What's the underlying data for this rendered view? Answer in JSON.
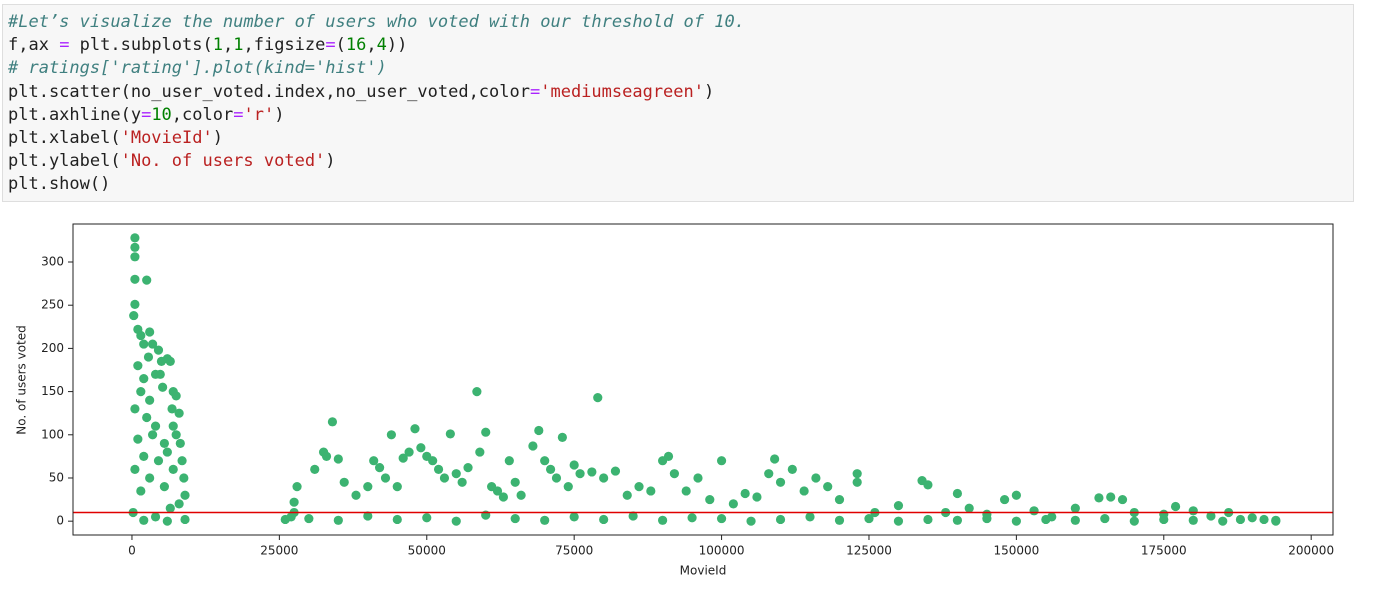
{
  "code": {
    "lines": [
      [
        {
          "text": "#Let’s visualize the number of users who voted with our threshold of 10.",
          "color": "#408080",
          "italic": true
        }
      ],
      [
        {
          "text": "f,ax ",
          "color": "#212121"
        },
        {
          "text": "=",
          "color": "#aa22ff"
        },
        {
          "text": " plt.subplots(",
          "color": "#212121"
        },
        {
          "text": "1",
          "color": "#008000"
        },
        {
          "text": ",",
          "color": "#212121"
        },
        {
          "text": "1",
          "color": "#008000"
        },
        {
          "text": ",figsize",
          "color": "#212121"
        },
        {
          "text": "=",
          "color": "#aa22ff"
        },
        {
          "text": "(",
          "color": "#212121"
        },
        {
          "text": "16",
          "color": "#008000"
        },
        {
          "text": ",",
          "color": "#212121"
        },
        {
          "text": "4",
          "color": "#008000"
        },
        {
          "text": "))",
          "color": "#212121"
        }
      ],
      [
        {
          "text": "# ratings['rating'].plot(kind='hist')",
          "color": "#408080",
          "italic": true
        }
      ],
      [
        {
          "text": "plt.scatter(no_user_voted.index,no_user_voted,color",
          "color": "#212121"
        },
        {
          "text": "=",
          "color": "#aa22ff"
        },
        {
          "text": "'mediumseagreen'",
          "color": "#ba2121"
        },
        {
          "text": ")",
          "color": "#212121"
        }
      ],
      [
        {
          "text": "plt.axhline(y",
          "color": "#212121"
        },
        {
          "text": "=",
          "color": "#aa22ff"
        },
        {
          "text": "10",
          "color": "#008000"
        },
        {
          "text": ",color",
          "color": "#212121"
        },
        {
          "text": "=",
          "color": "#aa22ff"
        },
        {
          "text": "'r'",
          "color": "#ba2121"
        },
        {
          "text": ")",
          "color": "#212121"
        }
      ],
      [
        {
          "text": "plt.xlabel(",
          "color": "#212121"
        },
        {
          "text": "'MovieId'",
          "color": "#ba2121"
        },
        {
          "text": ")",
          "color": "#212121"
        }
      ],
      [
        {
          "text": "plt.ylabel(",
          "color": "#212121"
        },
        {
          "text": "'No. of users voted'",
          "color": "#ba2121"
        },
        {
          "text": ")",
          "color": "#212121"
        }
      ],
      [
        {
          "text": "plt.show()",
          "color": "#212121"
        }
      ]
    ]
  },
  "chart_data": {
    "type": "scatter",
    "xlabel": "MovieId",
    "ylabel": "No. of users voted",
    "color": "#3cb371",
    "xlim": [
      -10000,
      203700
    ],
    "ylim": [
      -16,
      344
    ],
    "xticks": [
      0,
      25000,
      50000,
      75000,
      100000,
      125000,
      150000,
      175000,
      200000
    ],
    "yticks": [
      0,
      50,
      100,
      150,
      200,
      250,
      300
    ],
    "hline": {
      "y": 10,
      "color": "#e00000"
    },
    "x": [
      500,
      500,
      500,
      500,
      2500,
      500,
      300,
      1000,
      1500,
      2000,
      3000,
      3500,
      2800,
      4500,
      5000,
      6000,
      6500,
      4000,
      4800,
      5200,
      7000,
      7500,
      6800,
      8000,
      7000,
      7500,
      8200,
      8500,
      8800,
      9000,
      1000,
      2000,
      1500,
      3000,
      500,
      2500,
      4000,
      3500,
      1000,
      5500,
      6000,
      2000,
      4500,
      7000,
      500,
      3000,
      5500,
      1500,
      8000,
      6500,
      200,
      4000,
      9000,
      2000,
      6000,
      26000,
      27000,
      27500,
      28000,
      27500,
      31000,
      32500,
      33000,
      34000,
      35000,
      36000,
      38000,
      40000,
      41000,
      42000,
      43000,
      44000,
      45000,
      46000,
      47000,
      48000,
      49000,
      50000,
      51000,
      52000,
      53000,
      54000,
      55000,
      56000,
      57000,
      58500,
      59000,
      60000,
      61000,
      62000,
      63000,
      64000,
      65000,
      66000,
      68000,
      69000,
      70000,
      71000,
      72000,
      73000,
      74000,
      75000,
      76000,
      78000,
      79000,
      80000,
      82000,
      84000,
      86000,
      88000,
      90000,
      91000,
      92000,
      94000,
      96000,
      98000,
      100000,
      102000,
      104000,
      106000,
      108000,
      109000,
      110000,
      112000,
      114000,
      116000,
      118000,
      120000,
      123000,
      123000,
      126000,
      130000,
      134000,
      135000,
      138000,
      140000,
      142000,
      145000,
      148000,
      150000,
      153000,
      156000,
      160000,
      164000,
      166000,
      168000,
      170000,
      175000,
      177000,
      180000,
      183000,
      186000,
      190000,
      192000,
      194000,
      194000,
      30000,
      35000,
      40000,
      45000,
      50000,
      55000,
      60000,
      65000,
      70000,
      75000,
      80000,
      85000,
      90000,
      95000,
      100000,
      105000,
      110000,
      115000,
      120000,
      125000,
      130000,
      135000,
      140000,
      145000,
      150000,
      155000,
      160000,
      165000,
      170000,
      175000,
      180000,
      185000,
      188000
    ],
    "values": [
      328,
      317,
      306,
      280,
      279,
      251,
      238,
      222,
      215,
      205,
      219,
      205,
      190,
      198,
      185,
      188,
      185,
      170,
      170,
      155,
      150,
      145,
      130,
      125,
      110,
      100,
      90,
      70,
      50,
      30,
      180,
      165,
      150,
      140,
      130,
      120,
      110,
      100,
      95,
      90,
      80,
      75,
      70,
      60,
      60,
      50,
      40,
      35,
      20,
      15,
      10,
      5,
      2,
      1,
      0,
      2,
      5,
      10,
      40,
      22,
      60,
      80,
      75,
      115,
      72,
      45,
      30,
      40,
      70,
      62,
      50,
      100,
      40,
      73,
      80,
      107,
      85,
      75,
      70,
      60,
      50,
      101,
      55,
      45,
      62,
      150,
      80,
      103,
      40,
      35,
      28,
      70,
      45,
      30,
      87,
      105,
      70,
      60,
      50,
      97,
      40,
      65,
      55,
      57,
      143,
      50,
      58,
      30,
      40,
      35,
      70,
      75,
      55,
      35,
      50,
      25,
      70,
      20,
      32,
      28,
      55,
      72,
      45,
      60,
      35,
      50,
      40,
      25,
      55,
      45,
      10,
      18,
      47,
      42,
      10,
      32,
      15,
      8,
      25,
      30,
      12,
      5,
      15,
      27,
      28,
      25,
      10,
      8,
      17,
      12,
      6,
      10,
      4,
      2,
      1,
      0,
      3,
      1,
      6,
      2,
      4,
      0,
      7,
      3,
      1,
      5,
      2,
      6,
      1,
      4,
      3,
      0,
      2,
      5,
      1,
      3,
      0,
      2,
      1,
      3,
      0,
      2,
      1,
      3,
      0,
      2,
      1,
      0,
      2
    ]
  }
}
